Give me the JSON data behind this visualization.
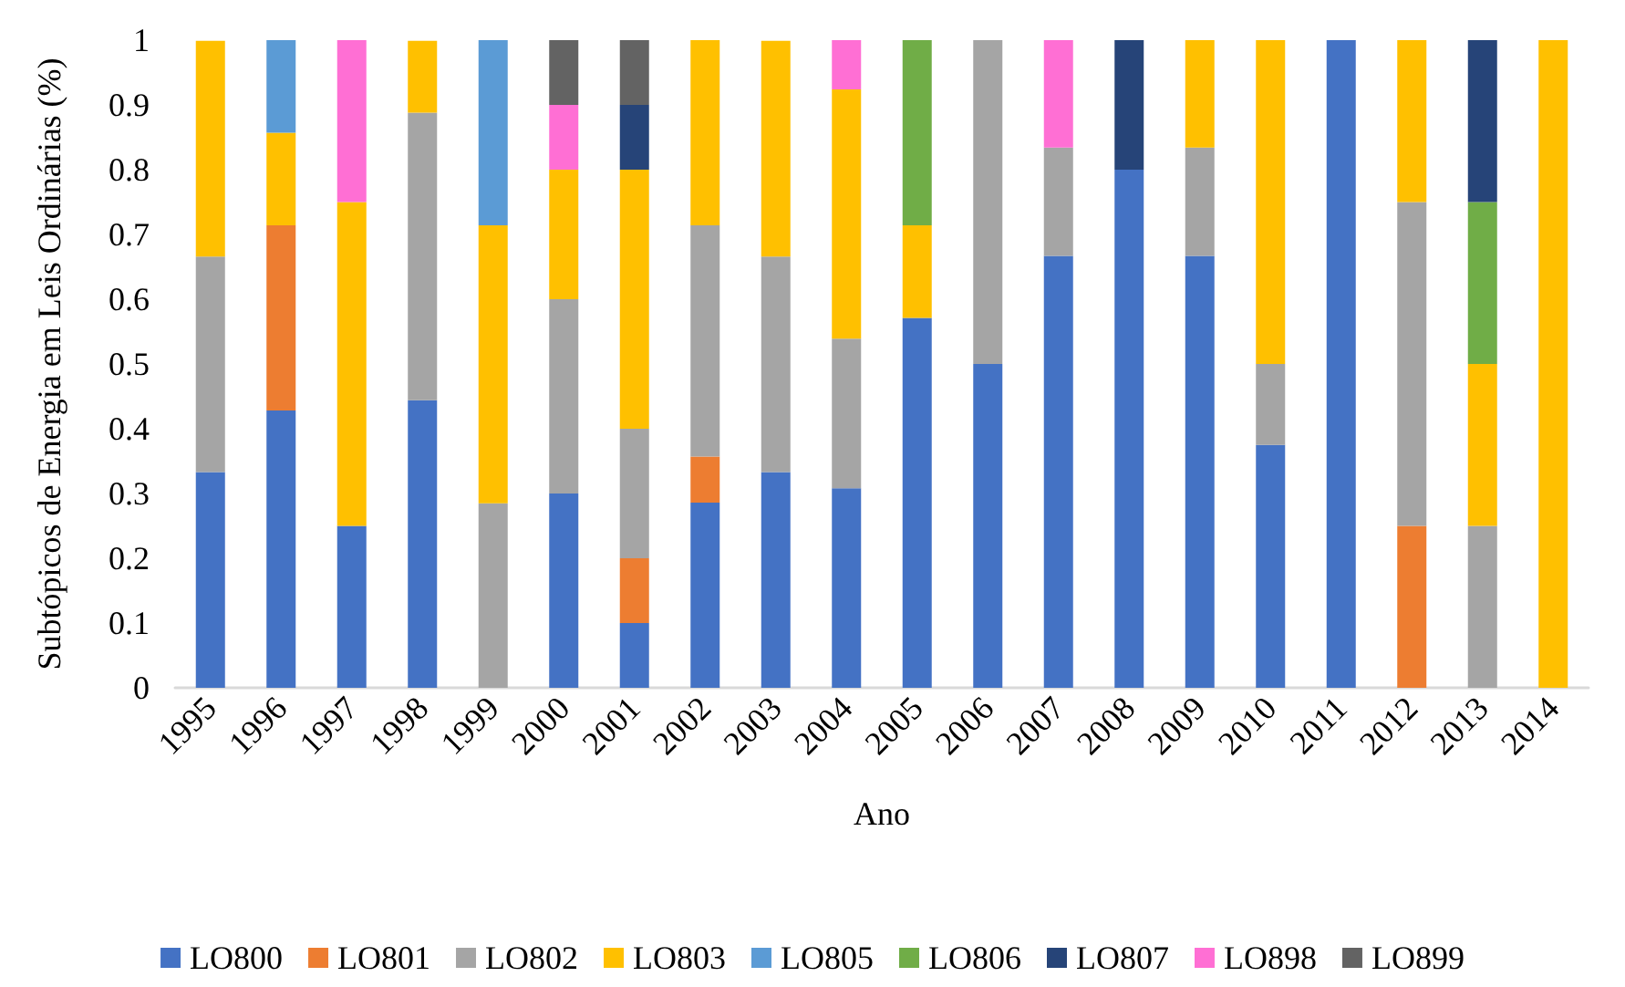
{
  "chart_data": {
    "type": "bar",
    "stacked": true,
    "xlabel": "Ano",
    "ylabel": "Subtópicos de Energia em Leis Ordinárias (%)",
    "categories": [
      "1995",
      "1996",
      "1997",
      "1998",
      "1999",
      "2000",
      "2001",
      "2002",
      "2003",
      "2004",
      "2005",
      "2006",
      "2007",
      "2008",
      "2009",
      "2010",
      "2011",
      "2012",
      "2013",
      "2014"
    ],
    "series": [
      {
        "name": "LO800",
        "color": "#4472c4",
        "values": [
          0.333,
          0.428,
          0.25,
          0.444,
          null,
          0.3,
          0.1,
          0.286,
          0.333,
          0.308,
          0.571,
          0.5,
          0.667,
          0.8,
          0.667,
          0.375,
          1,
          null,
          null,
          null
        ]
      },
      {
        "name": "LO801",
        "color": "#ed7d31",
        "values": [
          null,
          0.286,
          null,
          null,
          null,
          null,
          0.1,
          0.071,
          null,
          null,
          null,
          null,
          null,
          null,
          null,
          null,
          null,
          0.25,
          null,
          null
        ]
      },
      {
        "name": "LO802",
        "color": "#a5a5a5",
        "values": [
          0.333,
          null,
          null,
          0.444,
          0.285,
          0.3,
          0.2,
          0.357,
          0.333,
          0.231,
          null,
          0.5,
          0.167,
          null,
          0.167,
          0.125,
          null,
          0.5,
          0.25,
          null
        ]
      },
      {
        "name": "LO803",
        "color": "#ffc000",
        "values": [
          0.333,
          0.143,
          0.5,
          0.111,
          0.429,
          0.2,
          0.4,
          0.286,
          0.333,
          0.385,
          0.143,
          null,
          null,
          null,
          0.166,
          0.5,
          null,
          0.25,
          0.25,
          1
        ]
      },
      {
        "name": "LO805",
        "color": "#5b9bd5",
        "values": [
          null,
          0.143,
          null,
          null,
          0.286,
          null,
          null,
          null,
          null,
          null,
          null,
          null,
          null,
          null,
          null,
          null,
          null,
          null,
          null,
          null
        ]
      },
      {
        "name": "LO806",
        "color": "#70ad47",
        "values": [
          null,
          null,
          null,
          null,
          null,
          null,
          null,
          null,
          null,
          null,
          0.286,
          null,
          null,
          null,
          null,
          null,
          null,
          null,
          0.25,
          null
        ]
      },
      {
        "name": "LO807",
        "color": "#264478",
        "values": [
          null,
          null,
          null,
          null,
          null,
          null,
          0.1,
          null,
          null,
          null,
          null,
          null,
          null,
          0.2,
          null,
          null,
          null,
          null,
          0.25,
          null
        ]
      },
      {
        "name": "LO898",
        "color": "#ff6fd4",
        "values": [
          null,
          null,
          0.25,
          null,
          null,
          0.1,
          null,
          null,
          null,
          0.076,
          null,
          null,
          0.166,
          null,
          null,
          null,
          null,
          null,
          null,
          null
        ]
      },
      {
        "name": "LO899",
        "color": "#636363",
        "values": [
          null,
          null,
          null,
          null,
          null,
          0.1,
          0.1,
          null,
          null,
          null,
          null,
          null,
          null,
          null,
          null,
          null,
          null,
          null,
          null,
          null
        ]
      }
    ],
    "ylim": [
      0,
      1
    ],
    "yticks": [
      0,
      0.1,
      0.2,
      0.3,
      0.4,
      0.5,
      0.6,
      0.7,
      0.8,
      0.9,
      1
    ],
    "grid": false,
    "legend": "bottom"
  }
}
